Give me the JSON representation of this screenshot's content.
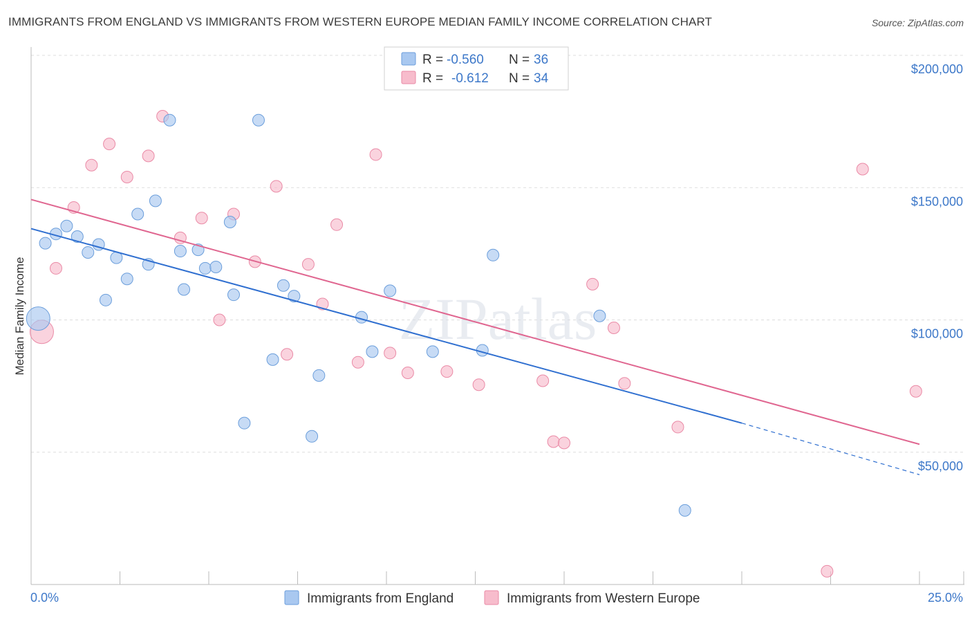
{
  "title": "IMMIGRANTS FROM ENGLAND VS IMMIGRANTS FROM WESTERN EUROPE MEDIAN FAMILY INCOME CORRELATION CHART",
  "source": "Source: ZipAtlas.com",
  "watermark": "ZIPatlas",
  "colors": {
    "england_fill": "#a9c8f0",
    "england_stroke": "#6b9edb",
    "england_line": "#2f6fd0",
    "western_fill": "#f7bccc",
    "western_stroke": "#ea8aa6",
    "western_line": "#e06690",
    "tick_text": "#3d78c9",
    "grid": "#dddddd"
  },
  "legend": {
    "rows": [
      {
        "r_label": "R =",
        "r_value": "-0.560",
        "n_label": "N =",
        "n_value": "36"
      },
      {
        "r_label": "R =",
        "r_value": "-0.612",
        "n_label": "N =",
        "n_value": "34"
      }
    ]
  },
  "chart_data": {
    "type": "scatter",
    "title": "IMMIGRANTS FROM ENGLAND VS IMMIGRANTS FROM WESTERN EUROPE MEDIAN FAMILY INCOME CORRELATION CHART",
    "xlabel": "",
    "ylabel": "Median Family Income",
    "xlim": [
      0,
      25
    ],
    "ylim": [
      0,
      210000
    ],
    "x_tick_labels": [
      "0.0%",
      "25.0%"
    ],
    "y_ticks": [
      50000,
      100000,
      150000,
      200000
    ],
    "y_tick_labels": [
      "$50,000",
      "$100,000",
      "$150,000",
      "$200,000"
    ],
    "grid": true,
    "series": [
      {
        "name": "Immigrants from England",
        "r": -0.56,
        "n": 36,
        "trend": {
          "x0": 0,
          "y0": 134500,
          "x1": 20,
          "y1": 61000,
          "dash_x1": 25,
          "dash_y1": 41500
        },
        "points": [
          {
            "x": 0.2,
            "y": 100500,
            "size": "large"
          },
          {
            "x": 0.4,
            "y": 129000
          },
          {
            "x": 0.7,
            "y": 132500
          },
          {
            "x": 1.0,
            "y": 135500
          },
          {
            "x": 1.3,
            "y": 131500
          },
          {
            "x": 1.6,
            "y": 125500
          },
          {
            "x": 1.9,
            "y": 128500
          },
          {
            "x": 2.1,
            "y": 107500
          },
          {
            "x": 2.4,
            "y": 123500
          },
          {
            "x": 2.7,
            "y": 115500
          },
          {
            "x": 3.0,
            "y": 140000
          },
          {
            "x": 3.3,
            "y": 121000
          },
          {
            "x": 3.5,
            "y": 145000
          },
          {
            "x": 3.9,
            "y": 175500
          },
          {
            "x": 4.2,
            "y": 126000
          },
          {
            "x": 4.3,
            "y": 111500
          },
          {
            "x": 4.7,
            "y": 126500
          },
          {
            "x": 4.9,
            "y": 119500
          },
          {
            "x": 5.2,
            "y": 120000
          },
          {
            "x": 5.6,
            "y": 137000
          },
          {
            "x": 5.7,
            "y": 109500
          },
          {
            "x": 6.4,
            "y": 175500
          },
          {
            "x": 6.0,
            "y": 61000
          },
          {
            "x": 6.8,
            "y": 85000
          },
          {
            "x": 7.1,
            "y": 113000
          },
          {
            "x": 7.4,
            "y": 109000
          },
          {
            "x": 7.9,
            "y": 56000
          },
          {
            "x": 8.1,
            "y": 79000
          },
          {
            "x": 9.3,
            "y": 101000
          },
          {
            "x": 9.6,
            "y": 88000
          },
          {
            "x": 10.1,
            "y": 111000
          },
          {
            "x": 11.3,
            "y": 88000
          },
          {
            "x": 12.7,
            "y": 88500
          },
          {
            "x": 13.0,
            "y": 124500
          },
          {
            "x": 16.0,
            "y": 101500
          },
          {
            "x": 18.4,
            "y": 28000
          }
        ]
      },
      {
        "name": "Immigrants from Western Europe",
        "r": -0.612,
        "n": 34,
        "trend": {
          "x0": 0,
          "y0": 145500,
          "x1": 25,
          "y1": 53000
        },
        "points": [
          {
            "x": 0.3,
            "y": 95500,
            "size": "large"
          },
          {
            "x": 0.7,
            "y": 119500
          },
          {
            "x": 1.2,
            "y": 142500
          },
          {
            "x": 1.7,
            "y": 158500
          },
          {
            "x": 2.2,
            "y": 166500
          },
          {
            "x": 2.7,
            "y": 154000
          },
          {
            "x": 3.3,
            "y": 162000
          },
          {
            "x": 3.7,
            "y": 177000
          },
          {
            "x": 4.2,
            "y": 131000
          },
          {
            "x": 4.8,
            "y": 138500
          },
          {
            "x": 5.3,
            "y": 100000
          },
          {
            "x": 5.7,
            "y": 140000
          },
          {
            "x": 6.3,
            "y": 122000
          },
          {
            "x": 6.9,
            "y": 150500
          },
          {
            "x": 7.2,
            "y": 87000
          },
          {
            "x": 7.8,
            "y": 121000
          },
          {
            "x": 8.2,
            "y": 106000
          },
          {
            "x": 8.6,
            "y": 136000
          },
          {
            "x": 9.2,
            "y": 84000
          },
          {
            "x": 9.7,
            "y": 162500
          },
          {
            "x": 10.1,
            "y": 87500
          },
          {
            "x": 10.6,
            "y": 80000
          },
          {
            "x": 11.7,
            "y": 80500
          },
          {
            "x": 12.6,
            "y": 75500
          },
          {
            "x": 14.4,
            "y": 77000
          },
          {
            "x": 14.7,
            "y": 54000
          },
          {
            "x": 15.0,
            "y": 53500
          },
          {
            "x": 15.8,
            "y": 113500
          },
          {
            "x": 16.4,
            "y": 97000
          },
          {
            "x": 16.7,
            "y": 76000
          },
          {
            "x": 18.2,
            "y": 59500
          },
          {
            "x": 22.4,
            "y": 5000
          },
          {
            "x": 23.4,
            "y": 157000
          },
          {
            "x": 24.9,
            "y": 73000
          }
        ]
      }
    ]
  }
}
